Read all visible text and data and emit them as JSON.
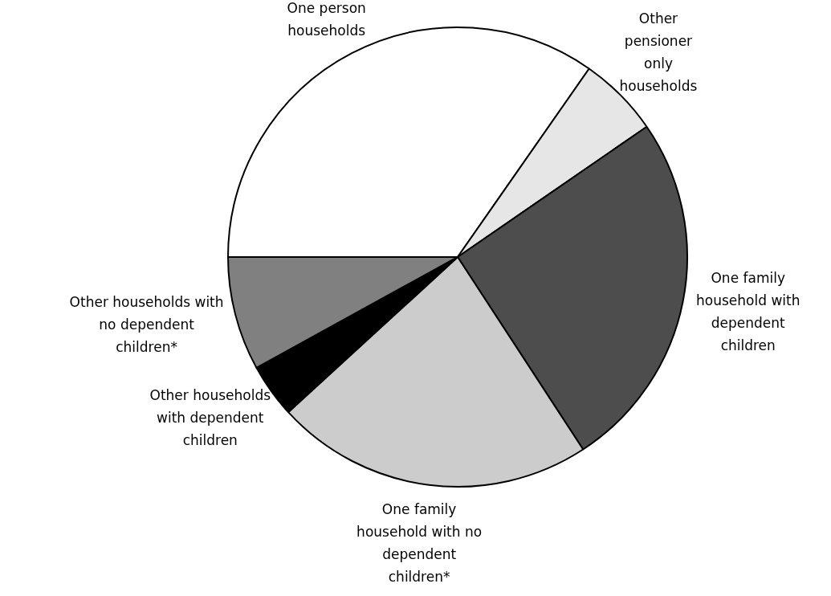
{
  "chart_data": {
    "type": "pie",
    "categories": [
      "One person households",
      "Other pensioner only households",
      "One family household with dependent children",
      "One family household with no dependent children*",
      "Other households with dependent children",
      "Other households with no dependent children*"
    ],
    "values": [
      34.7,
      5.7,
      25.4,
      22.4,
      3.8,
      8.0
    ],
    "colors": [
      "#ffffff",
      "#e6e6e6",
      "#4d4d4d",
      "#cccccc",
      "#000000",
      "#808080"
    ]
  }
}
